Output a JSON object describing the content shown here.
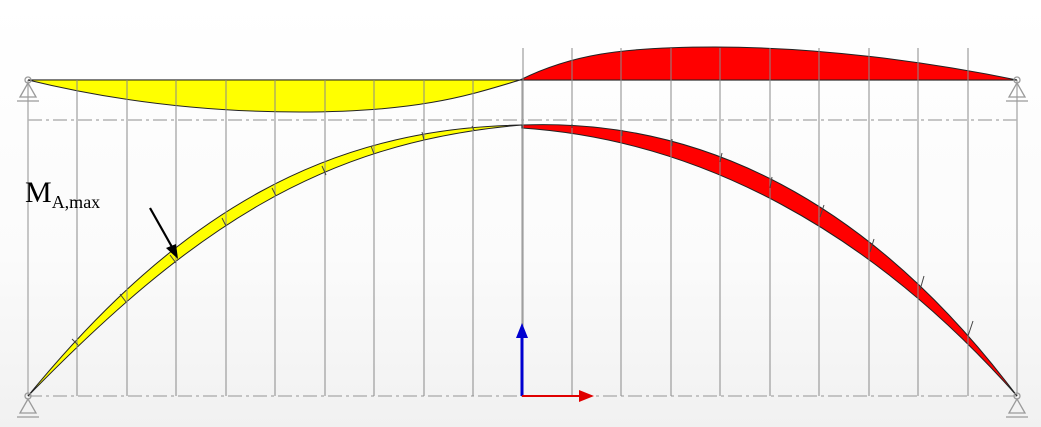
{
  "annotation": {
    "main": "M",
    "subscript": "A,max"
  },
  "colors": {
    "positive_fill": "#ffff00",
    "negative_fill": "#ff0000",
    "frame_lines": "#b4b4b4",
    "axis_x": "#e00000",
    "axis_z": "#0000d0"
  },
  "icons": {
    "supports": "pinned-support-icon",
    "axes": "coordinate-axes-icon"
  }
}
